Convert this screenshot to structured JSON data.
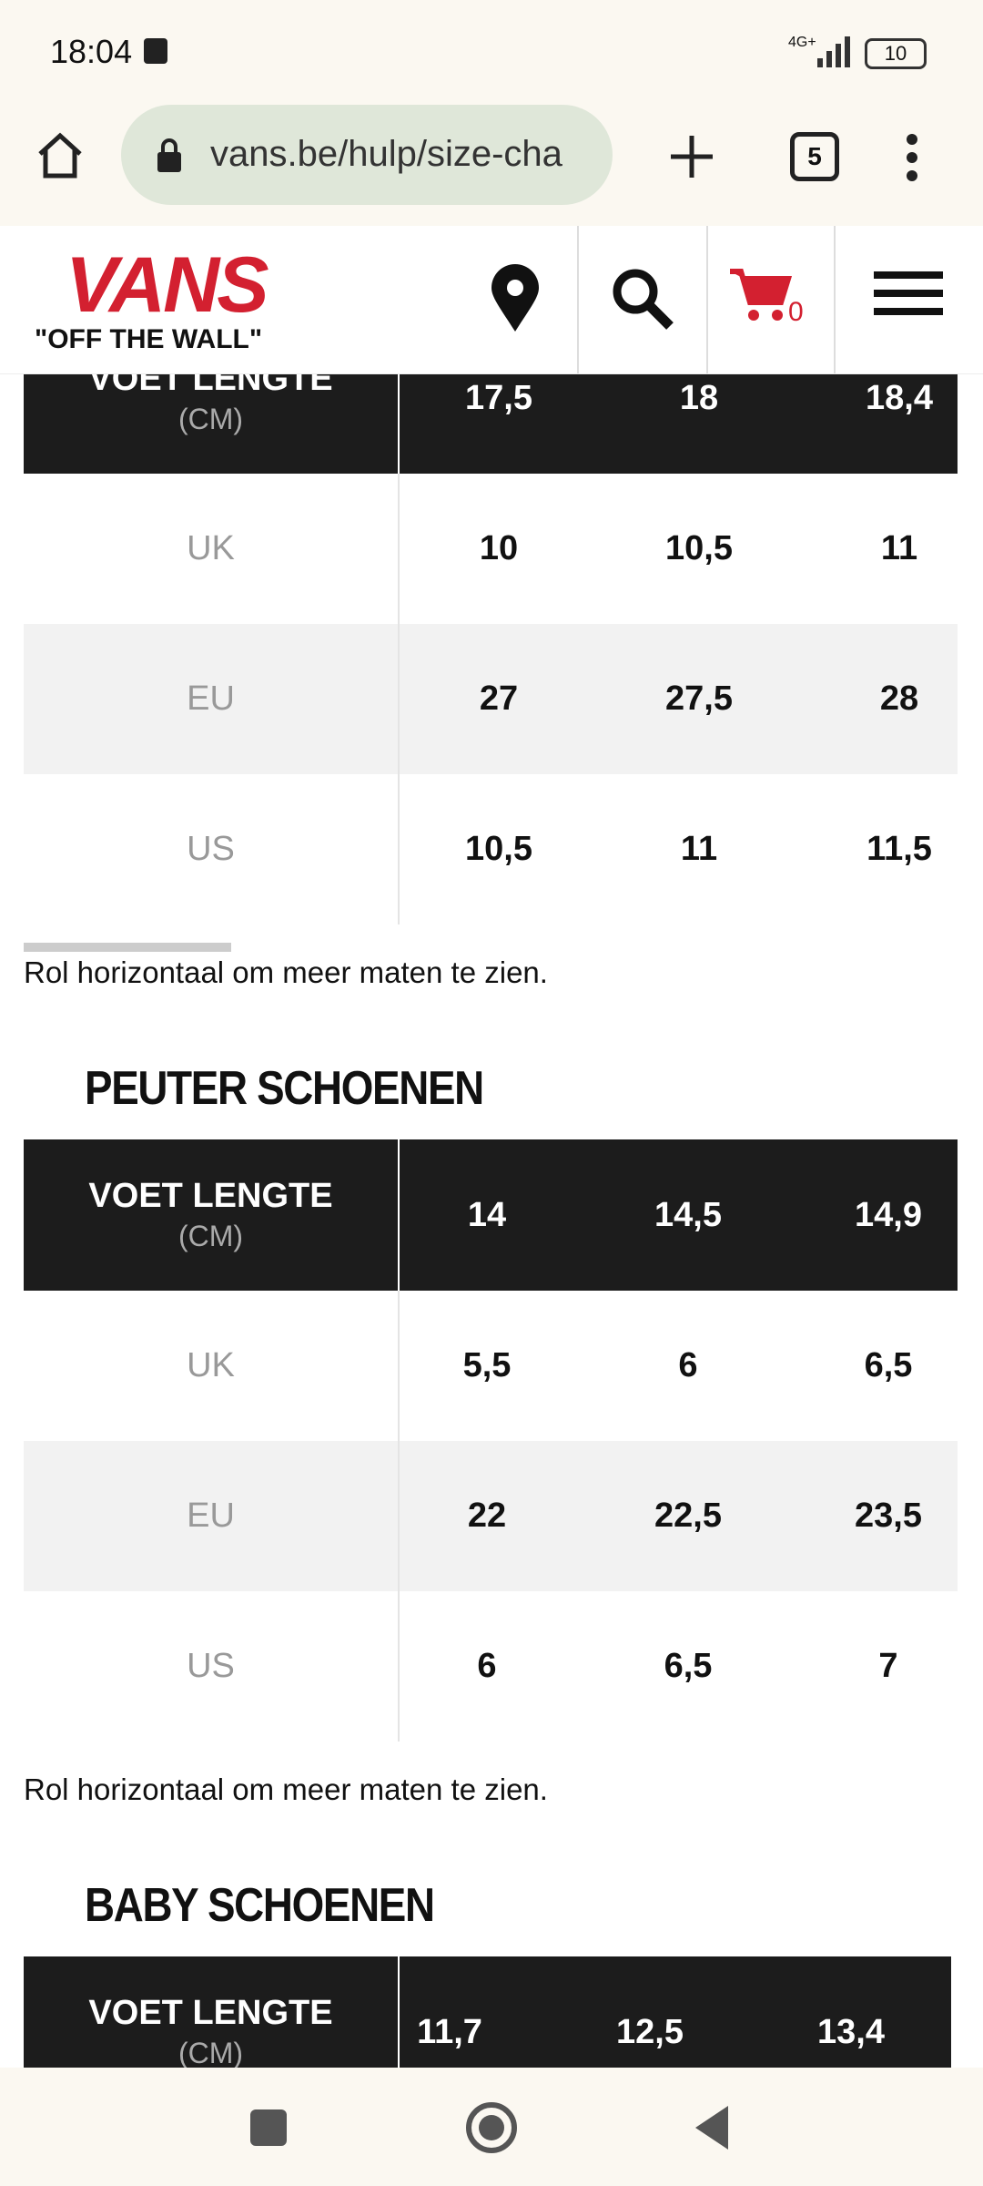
{
  "status": {
    "time": "18:04",
    "network": "4G+",
    "battery": "10"
  },
  "browser": {
    "url": "vans.be/hulp/size-cha",
    "tabs": "5"
  },
  "site": {
    "logo": "VANS",
    "tagline": "\"OFF THE WALL\"",
    "cart_count": "0"
  },
  "tables": [
    {
      "header": {
        "label": "VOET LENGTE",
        "unit": "(CM)",
        "values": [
          "17,5",
          "18",
          "18,4"
        ]
      },
      "rows": [
        {
          "label": "UK",
          "values": [
            "10",
            "10,5",
            "11"
          ]
        },
        {
          "label": "EU",
          "values": [
            "27",
            "27,5",
            "28"
          ]
        },
        {
          "label": "US",
          "values": [
            "10,5",
            "11",
            "11,5"
          ]
        }
      ],
      "note": "Rol horizontaal om meer maten te zien."
    },
    {
      "title": "PEUTER SCHOENEN",
      "header": {
        "label": "VOET LENGTE",
        "unit": "(CM)",
        "values": [
          "14",
          "14,5",
          "14,9"
        ]
      },
      "rows": [
        {
          "label": "UK",
          "values": [
            "5,5",
            "6",
            "6,5"
          ]
        },
        {
          "label": "EU",
          "values": [
            "22",
            "22,5",
            "23,5"
          ]
        },
        {
          "label": "US",
          "values": [
            "6",
            "6,5",
            "7"
          ]
        }
      ],
      "note": "Rol horizontaal om meer maten te zien."
    },
    {
      "title": "BABY SCHOENEN",
      "header": {
        "label": "VOET LENGTE",
        "unit": "(CM)",
        "values": [
          "11,7",
          "12,5",
          "13,4"
        ]
      },
      "rows": []
    }
  ]
}
